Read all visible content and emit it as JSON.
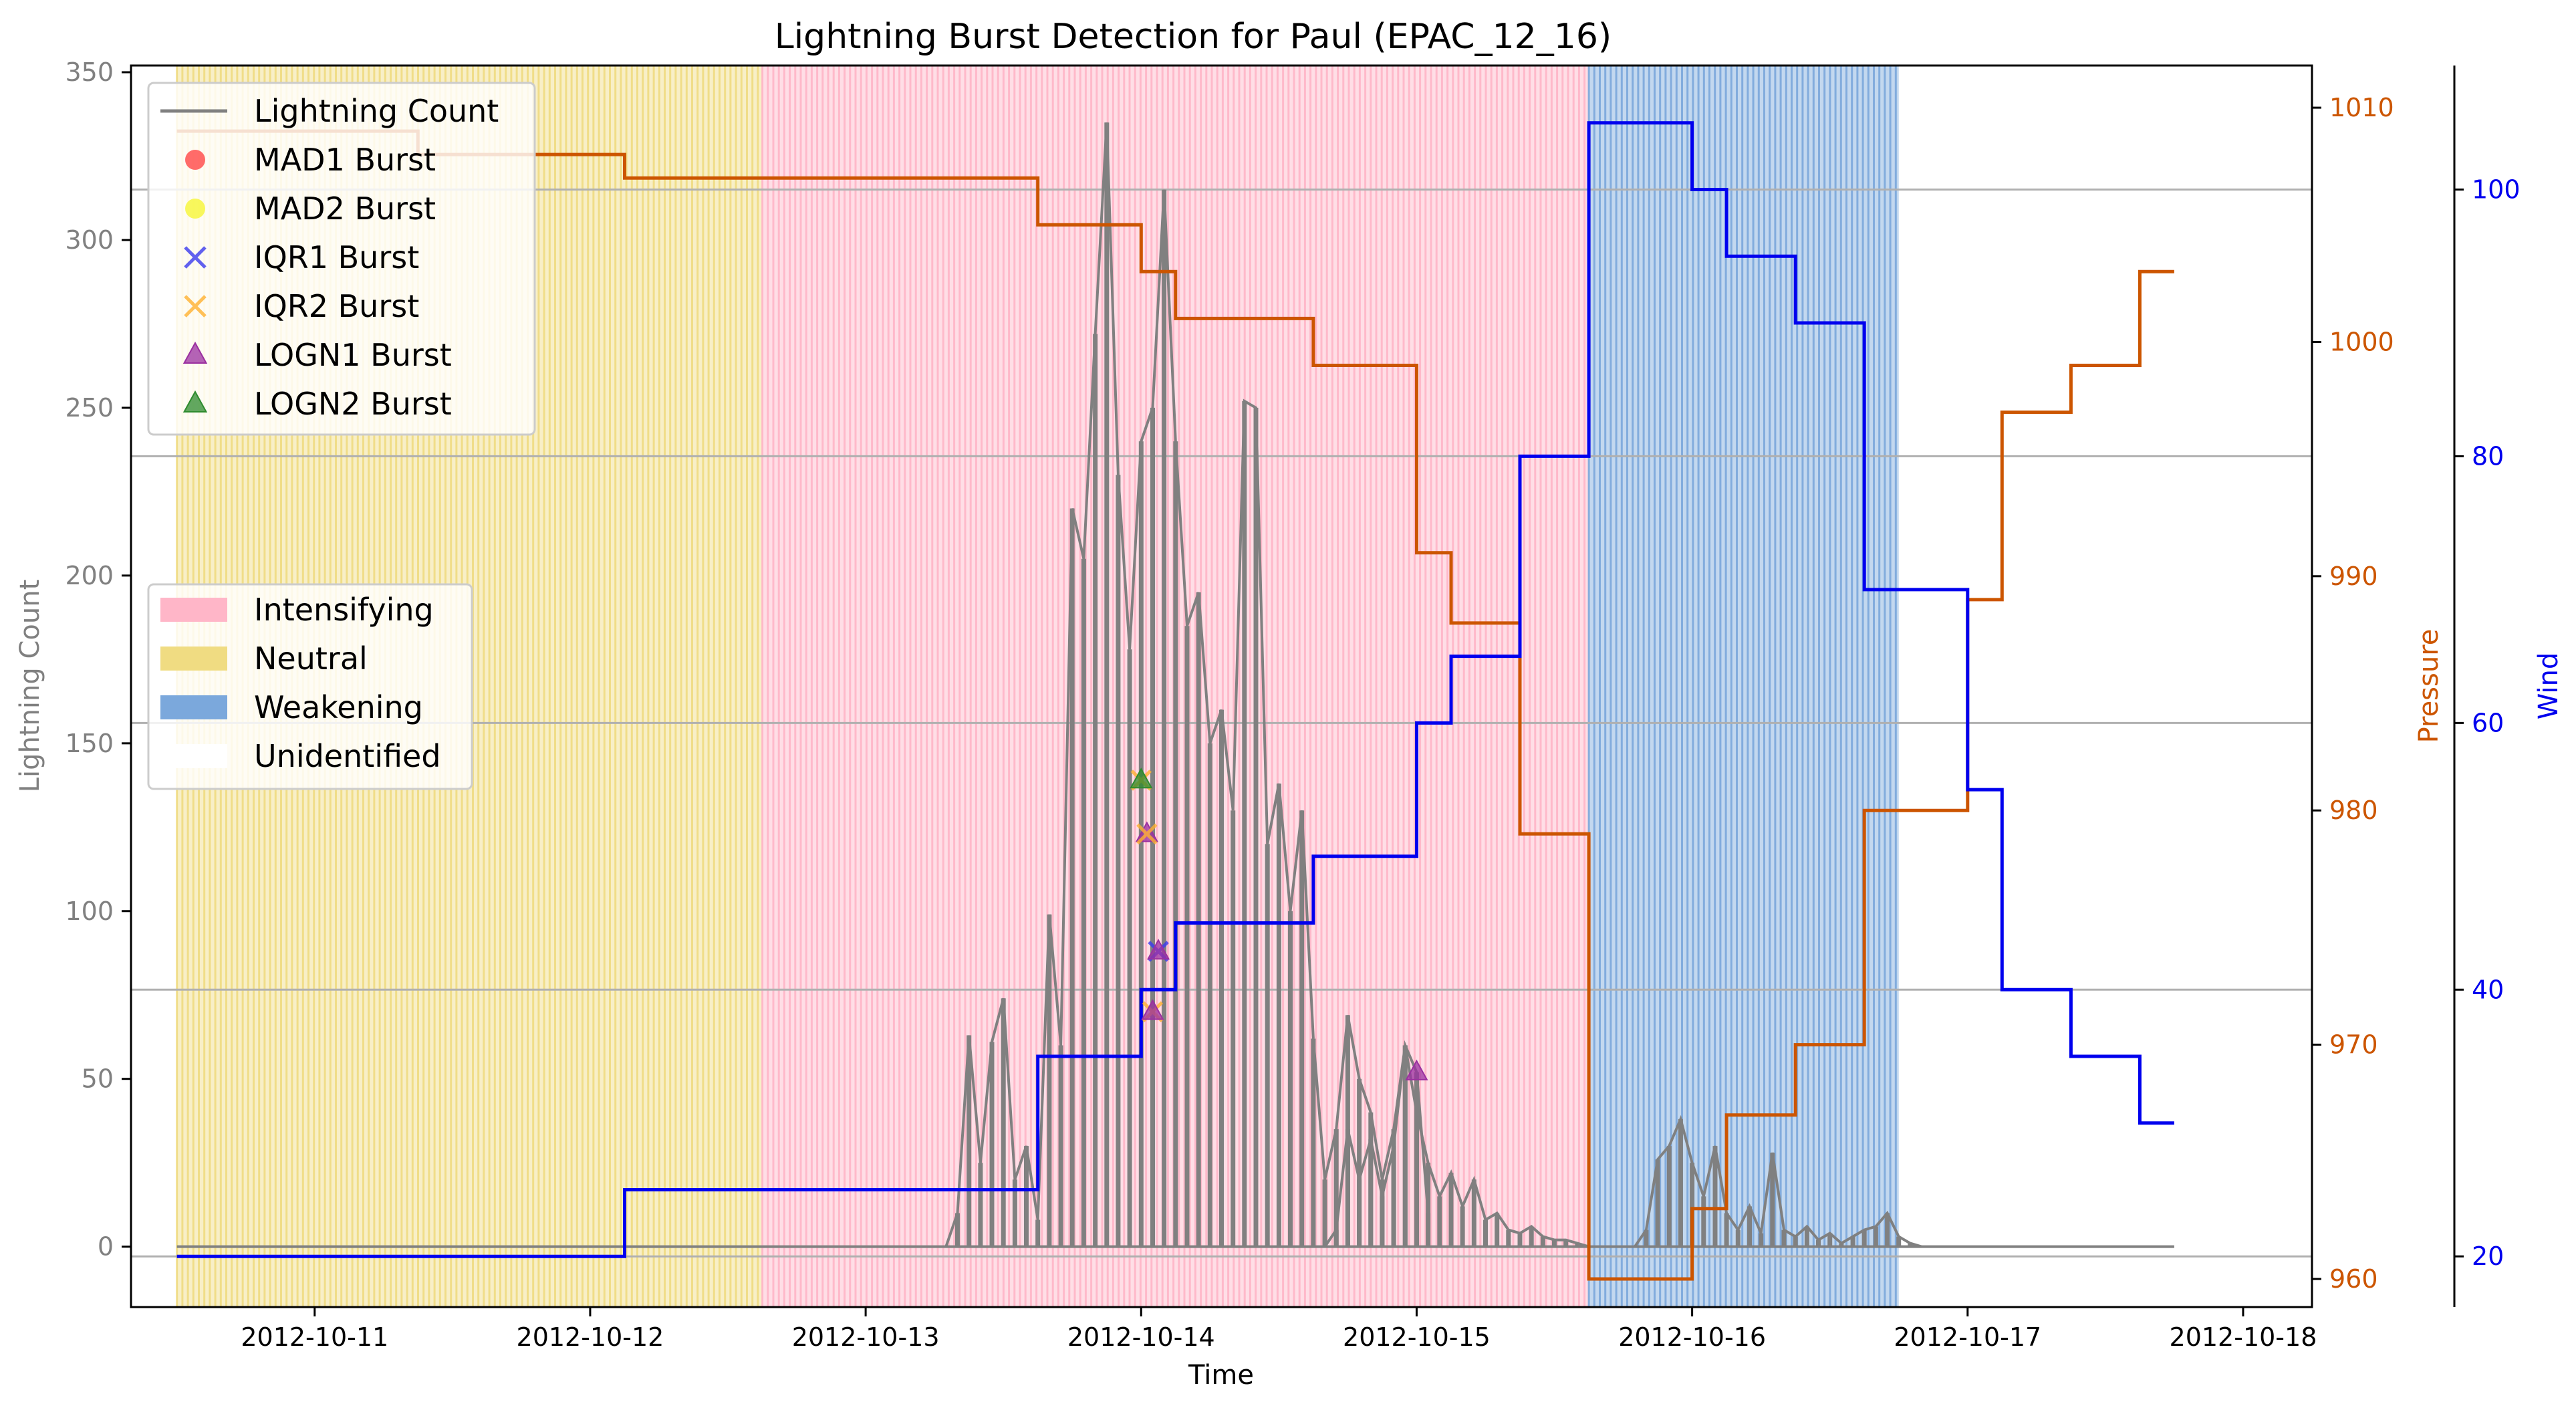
{
  "chart_data": {
    "type": "line",
    "title": "Lightning Burst Detection for Paul (EPAC_12_16)",
    "xlabel": "Time",
    "ylabel_left": "Lightning Count",
    "ylabel_right_pressure": "Pressure",
    "ylabel_right_wind": "Wind",
    "x_range": [
      "2012-10-10T08:00",
      "2012-10-18T06:00"
    ],
    "x_ticks": [
      "2012-10-11",
      "2012-10-12",
      "2012-10-13",
      "2012-10-14",
      "2012-10-15",
      "2012-10-16",
      "2012-10-17",
      "2012-10-18"
    ],
    "ylim_left": [
      -18,
      352
    ],
    "yticks_left": [
      0,
      50,
      100,
      150,
      200,
      250,
      300,
      350
    ],
    "ylim_pressure": [
      958.8,
      1011.8
    ],
    "yticks_pressure": [
      960,
      970,
      980,
      990,
      1000,
      1010
    ],
    "ylim_wind": [
      16.2,
      109.3
    ],
    "yticks_wind": [
      20,
      40,
      60,
      80,
      100
    ],
    "grid_horizontal_at_wind": [
      20,
      40,
      60,
      80,
      100
    ],
    "colors": {
      "lightning": "#808080",
      "pressure": "#cc5500",
      "wind": "#0000ee",
      "intensifying": "#ffb6c8",
      "neutral": "#f0dc82",
      "weakening": "#7ba8dc",
      "mad1": "#ff3b3b",
      "mad2": "#f5f52a",
      "iqr1": "#3a3aee",
      "iqr2": "#ffb030",
      "logn1": "#9b30a0",
      "logn2": "#2e8b2e"
    },
    "phases": [
      {
        "label": "Neutral",
        "start": "2012-10-10T12:00",
        "end": "2012-10-12T15:00"
      },
      {
        "label": "Intensifying",
        "start": "2012-10-12T15:00",
        "end": "2012-10-15T15:00"
      },
      {
        "label": "Weakening",
        "start": "2012-10-15T15:00",
        "end": "2012-10-16T18:00"
      },
      {
        "label": "Unidentified",
        "start": "2012-10-16T18:00",
        "end": "2012-10-17T18:00"
      }
    ],
    "pressure_steps": [
      {
        "t": "2012-10-10T12:00",
        "v": 1009
      },
      {
        "t": "2012-10-11T09:00",
        "v": 1008
      },
      {
        "t": "2012-10-12T03:00",
        "v": 1007
      },
      {
        "t": "2012-10-13T15:00",
        "v": 1005
      },
      {
        "t": "2012-10-14T00:00",
        "v": 1003
      },
      {
        "t": "2012-10-14T03:00",
        "v": 1001
      },
      {
        "t": "2012-10-14T15:00",
        "v": 999
      },
      {
        "t": "2012-10-15T00:00",
        "v": 991
      },
      {
        "t": "2012-10-15T03:00",
        "v": 988
      },
      {
        "t": "2012-10-15T09:00",
        "v": 979
      },
      {
        "t": "2012-10-15T15:00",
        "v": 960
      },
      {
        "t": "2012-10-16T00:00",
        "v": 963
      },
      {
        "t": "2012-10-16T03:00",
        "v": 967
      },
      {
        "t": "2012-10-16T09:00",
        "v": 970
      },
      {
        "t": "2012-10-16T15:00",
        "v": 980
      },
      {
        "t": "2012-10-17T00:00",
        "v": 989
      },
      {
        "t": "2012-10-17T03:00",
        "v": 997
      },
      {
        "t": "2012-10-17T09:00",
        "v": 999
      },
      {
        "t": "2012-10-17T15:00",
        "v": 1003
      },
      {
        "t": "2012-10-17T18:00",
        "v": 1003
      }
    ],
    "wind_steps": [
      {
        "t": "2012-10-10T12:00",
        "v": 20
      },
      {
        "t": "2012-10-12T03:00",
        "v": 25
      },
      {
        "t": "2012-10-13T15:00",
        "v": 35
      },
      {
        "t": "2012-10-14T00:00",
        "v": 40
      },
      {
        "t": "2012-10-14T03:00",
        "v": 45
      },
      {
        "t": "2012-10-14T15:00",
        "v": 50
      },
      {
        "t": "2012-10-15T00:00",
        "v": 60
      },
      {
        "t": "2012-10-15T03:00",
        "v": 65
      },
      {
        "t": "2012-10-15T09:00",
        "v": 80
      },
      {
        "t": "2012-10-15T15:00",
        "v": 105
      },
      {
        "t": "2012-10-16T00:00",
        "v": 100
      },
      {
        "t": "2012-10-16T03:00",
        "v": 95
      },
      {
        "t": "2012-10-16T09:00",
        "v": 90
      },
      {
        "t": "2012-10-16T15:00",
        "v": 70
      },
      {
        "t": "2012-10-17T00:00",
        "v": 55
      },
      {
        "t": "2012-10-17T03:00",
        "v": 40
      },
      {
        "t": "2012-10-17T09:00",
        "v": 35
      },
      {
        "t": "2012-10-17T15:00",
        "v": 30
      },
      {
        "t": "2012-10-17T18:00",
        "v": 30
      }
    ],
    "lightning_series": [
      {
        "t": "2012-10-13T07:00",
        "v": 0
      },
      {
        "t": "2012-10-13T08:00",
        "v": 10
      },
      {
        "t": "2012-10-13T09:00",
        "v": 63
      },
      {
        "t": "2012-10-13T10:00",
        "v": 25
      },
      {
        "t": "2012-10-13T11:00",
        "v": 61
      },
      {
        "t": "2012-10-13T12:00",
        "v": 74
      },
      {
        "t": "2012-10-13T13:00",
        "v": 20
      },
      {
        "t": "2012-10-13T14:00",
        "v": 30
      },
      {
        "t": "2012-10-13T15:00",
        "v": 8
      },
      {
        "t": "2012-10-13T16:00",
        "v": 99
      },
      {
        "t": "2012-10-13T17:00",
        "v": 60
      },
      {
        "t": "2012-10-13T18:00",
        "v": 220
      },
      {
        "t": "2012-10-13T19:00",
        "v": 205
      },
      {
        "t": "2012-10-13T20:00",
        "v": 272
      },
      {
        "t": "2012-10-13T21:00",
        "v": 335
      },
      {
        "t": "2012-10-13T22:00",
        "v": 230
      },
      {
        "t": "2012-10-13T23:00",
        "v": 178
      },
      {
        "t": "2012-10-14T00:00",
        "v": 240
      },
      {
        "t": "2012-10-14T01:00",
        "v": 250
      },
      {
        "t": "2012-10-14T02:00",
        "v": 315
      },
      {
        "t": "2012-10-14T03:00",
        "v": 240
      },
      {
        "t": "2012-10-14T04:00",
        "v": 185
      },
      {
        "t": "2012-10-14T05:00",
        "v": 195
      },
      {
        "t": "2012-10-14T06:00",
        "v": 150
      },
      {
        "t": "2012-10-14T07:00",
        "v": 160
      },
      {
        "t": "2012-10-14T08:00",
        "v": 130
      },
      {
        "t": "2012-10-14T09:00",
        "v": 252
      },
      {
        "t": "2012-10-14T10:00",
        "v": 250
      },
      {
        "t": "2012-10-14T11:00",
        "v": 120
      },
      {
        "t": "2012-10-14T12:00",
        "v": 138
      },
      {
        "t": "2012-10-14T13:00",
        "v": 100
      },
      {
        "t": "2012-10-14T14:00",
        "v": 130
      },
      {
        "t": "2012-10-14T15:00",
        "v": 62
      },
      {
        "t": "2012-10-14T16:00",
        "v": 20
      },
      {
        "t": "2012-10-14T17:00",
        "v": 35
      },
      {
        "t": "2012-10-14T18:00",
        "v": 69
      },
      {
        "t": "2012-10-14T19:00",
        "v": 50
      },
      {
        "t": "2012-10-14T20:00",
        "v": 40
      },
      {
        "t": "2012-10-14T21:00",
        "v": 20
      },
      {
        "t": "2012-10-14T22:00",
        "v": 35
      },
      {
        "t": "2012-10-14T23:00",
        "v": 60
      },
      {
        "t": "2012-10-15T00:00",
        "v": 40
      },
      {
        "t": "2012-10-15T01:00",
        "v": 25
      },
      {
        "t": "2012-10-15T02:00",
        "v": 15
      },
      {
        "t": "2012-10-15T03:00",
        "v": 22
      },
      {
        "t": "2012-10-15T04:00",
        "v": 12
      },
      {
        "t": "2012-10-15T05:00",
        "v": 20
      },
      {
        "t": "2012-10-15T06:00",
        "v": 8
      },
      {
        "t": "2012-10-15T07:00",
        "v": 10
      },
      {
        "t": "2012-10-15T08:00",
        "v": 5
      },
      {
        "t": "2012-10-15T09:00",
        "v": 4
      },
      {
        "t": "2012-10-15T10:00",
        "v": 6
      },
      {
        "t": "2012-10-15T11:00",
        "v": 3
      },
      {
        "t": "2012-10-15T12:00",
        "v": 2
      },
      {
        "t": "2012-10-15T13:00",
        "v": 2
      },
      {
        "t": "2012-10-15T14:00",
        "v": 1
      },
      {
        "t": "2012-10-15T15:00",
        "v": 0
      }
    ],
    "lightning_series_2": [
      {
        "t": "2012-10-14T16:00",
        "v": 0
      },
      {
        "t": "2012-10-14T17:00",
        "v": 5
      },
      {
        "t": "2012-10-14T18:00",
        "v": 35
      },
      {
        "t": "2012-10-14T19:00",
        "v": 20
      },
      {
        "t": "2012-10-14T20:00",
        "v": 32
      },
      {
        "t": "2012-10-14T21:00",
        "v": 15
      },
      {
        "t": "2012-10-14T22:00",
        "v": 30
      },
      {
        "t": "2012-10-14T23:00",
        "v": 60
      },
      {
        "t": "2012-10-15T00:00",
        "v": 52
      },
      {
        "t": "2012-10-15T01:00",
        "v": 10
      }
    ],
    "lightning_series_3": [
      {
        "t": "2012-10-15T19:00",
        "v": 0
      },
      {
        "t": "2012-10-15T20:00",
        "v": 5
      },
      {
        "t": "2012-10-15T21:00",
        "v": 26
      },
      {
        "t": "2012-10-15T22:00",
        "v": 30
      },
      {
        "t": "2012-10-15T23:00",
        "v": 38
      },
      {
        "t": "2012-10-16T00:00",
        "v": 25
      },
      {
        "t": "2012-10-16T01:00",
        "v": 15
      },
      {
        "t": "2012-10-16T02:00",
        "v": 30
      },
      {
        "t": "2012-10-16T03:00",
        "v": 10
      },
      {
        "t": "2012-10-16T04:00",
        "v": 5
      },
      {
        "t": "2012-10-16T05:00",
        "v": 12
      },
      {
        "t": "2012-10-16T06:00",
        "v": 4
      },
      {
        "t": "2012-10-16T07:00",
        "v": 28
      },
      {
        "t": "2012-10-16T08:00",
        "v": 5
      },
      {
        "t": "2012-10-16T09:00",
        "v": 3
      },
      {
        "t": "2012-10-16T10:00",
        "v": 6
      },
      {
        "t": "2012-10-16T11:00",
        "v": 2
      },
      {
        "t": "2012-10-16T12:00",
        "v": 4
      },
      {
        "t": "2012-10-16T13:00",
        "v": 1
      },
      {
        "t": "2012-10-16T14:00",
        "v": 3
      },
      {
        "t": "2012-10-16T15:00",
        "v": 5
      },
      {
        "t": "2012-10-16T16:00",
        "v": 6
      },
      {
        "t": "2012-10-16T17:00",
        "v": 10
      },
      {
        "t": "2012-10-16T18:00",
        "v": 3
      },
      {
        "t": "2012-10-16T19:00",
        "v": 1
      },
      {
        "t": "2012-10-16T20:00",
        "v": 0
      }
    ],
    "markers": [
      {
        "series": "IQR2 Burst",
        "t": "2012-10-14T00:00",
        "v": 139
      },
      {
        "series": "LOGN2 Burst",
        "t": "2012-10-14T00:00",
        "v": 139
      },
      {
        "series": "LOGN1 Burst",
        "t": "2012-10-14T00:30",
        "v": 123
      },
      {
        "series": "IQR2 Burst",
        "t": "2012-10-14T00:30",
        "v": 123
      },
      {
        "series": "IQR1 Burst",
        "t": "2012-10-14T01:30",
        "v": 88
      },
      {
        "series": "LOGN1 Burst",
        "t": "2012-10-14T01:30",
        "v": 88
      },
      {
        "series": "IQR2 Burst",
        "t": "2012-10-14T01:00",
        "v": 70
      },
      {
        "series": "LOGN1 Burst",
        "t": "2012-10-14T01:00",
        "v": 70
      },
      {
        "series": "LOGN1 Burst",
        "t": "2012-10-15T00:00",
        "v": 52
      }
    ],
    "legend_series": [
      {
        "name": "Lightning Count",
        "kind": "line",
        "color": "#808080"
      },
      {
        "name": "MAD1 Burst",
        "kind": "circle",
        "color": "#ff3b3b"
      },
      {
        "name": "MAD2 Burst",
        "kind": "circle",
        "color": "#f5f52a"
      },
      {
        "name": "IQR1 Burst",
        "kind": "x",
        "color": "#3a3aee"
      },
      {
        "name": "IQR2 Burst",
        "kind": "x",
        "color": "#ffb030"
      },
      {
        "name": "LOGN1 Burst",
        "kind": "triangle",
        "color": "#9b30a0"
      },
      {
        "name": "LOGN2 Burst",
        "kind": "triangle",
        "color": "#2e8b2e"
      }
    ],
    "legend_series_placement": "upper-left",
    "legend_phases": [
      {
        "name": "Intensifying",
        "color": "#ffb6c8"
      },
      {
        "name": "Neutral",
        "color": "#f0dc82"
      },
      {
        "name": "Weakening",
        "color": "#7ba8dc"
      },
      {
        "name": "Unidentified",
        "color": "#ffffff"
      }
    ],
    "legend_phases_placement": "center-left"
  }
}
